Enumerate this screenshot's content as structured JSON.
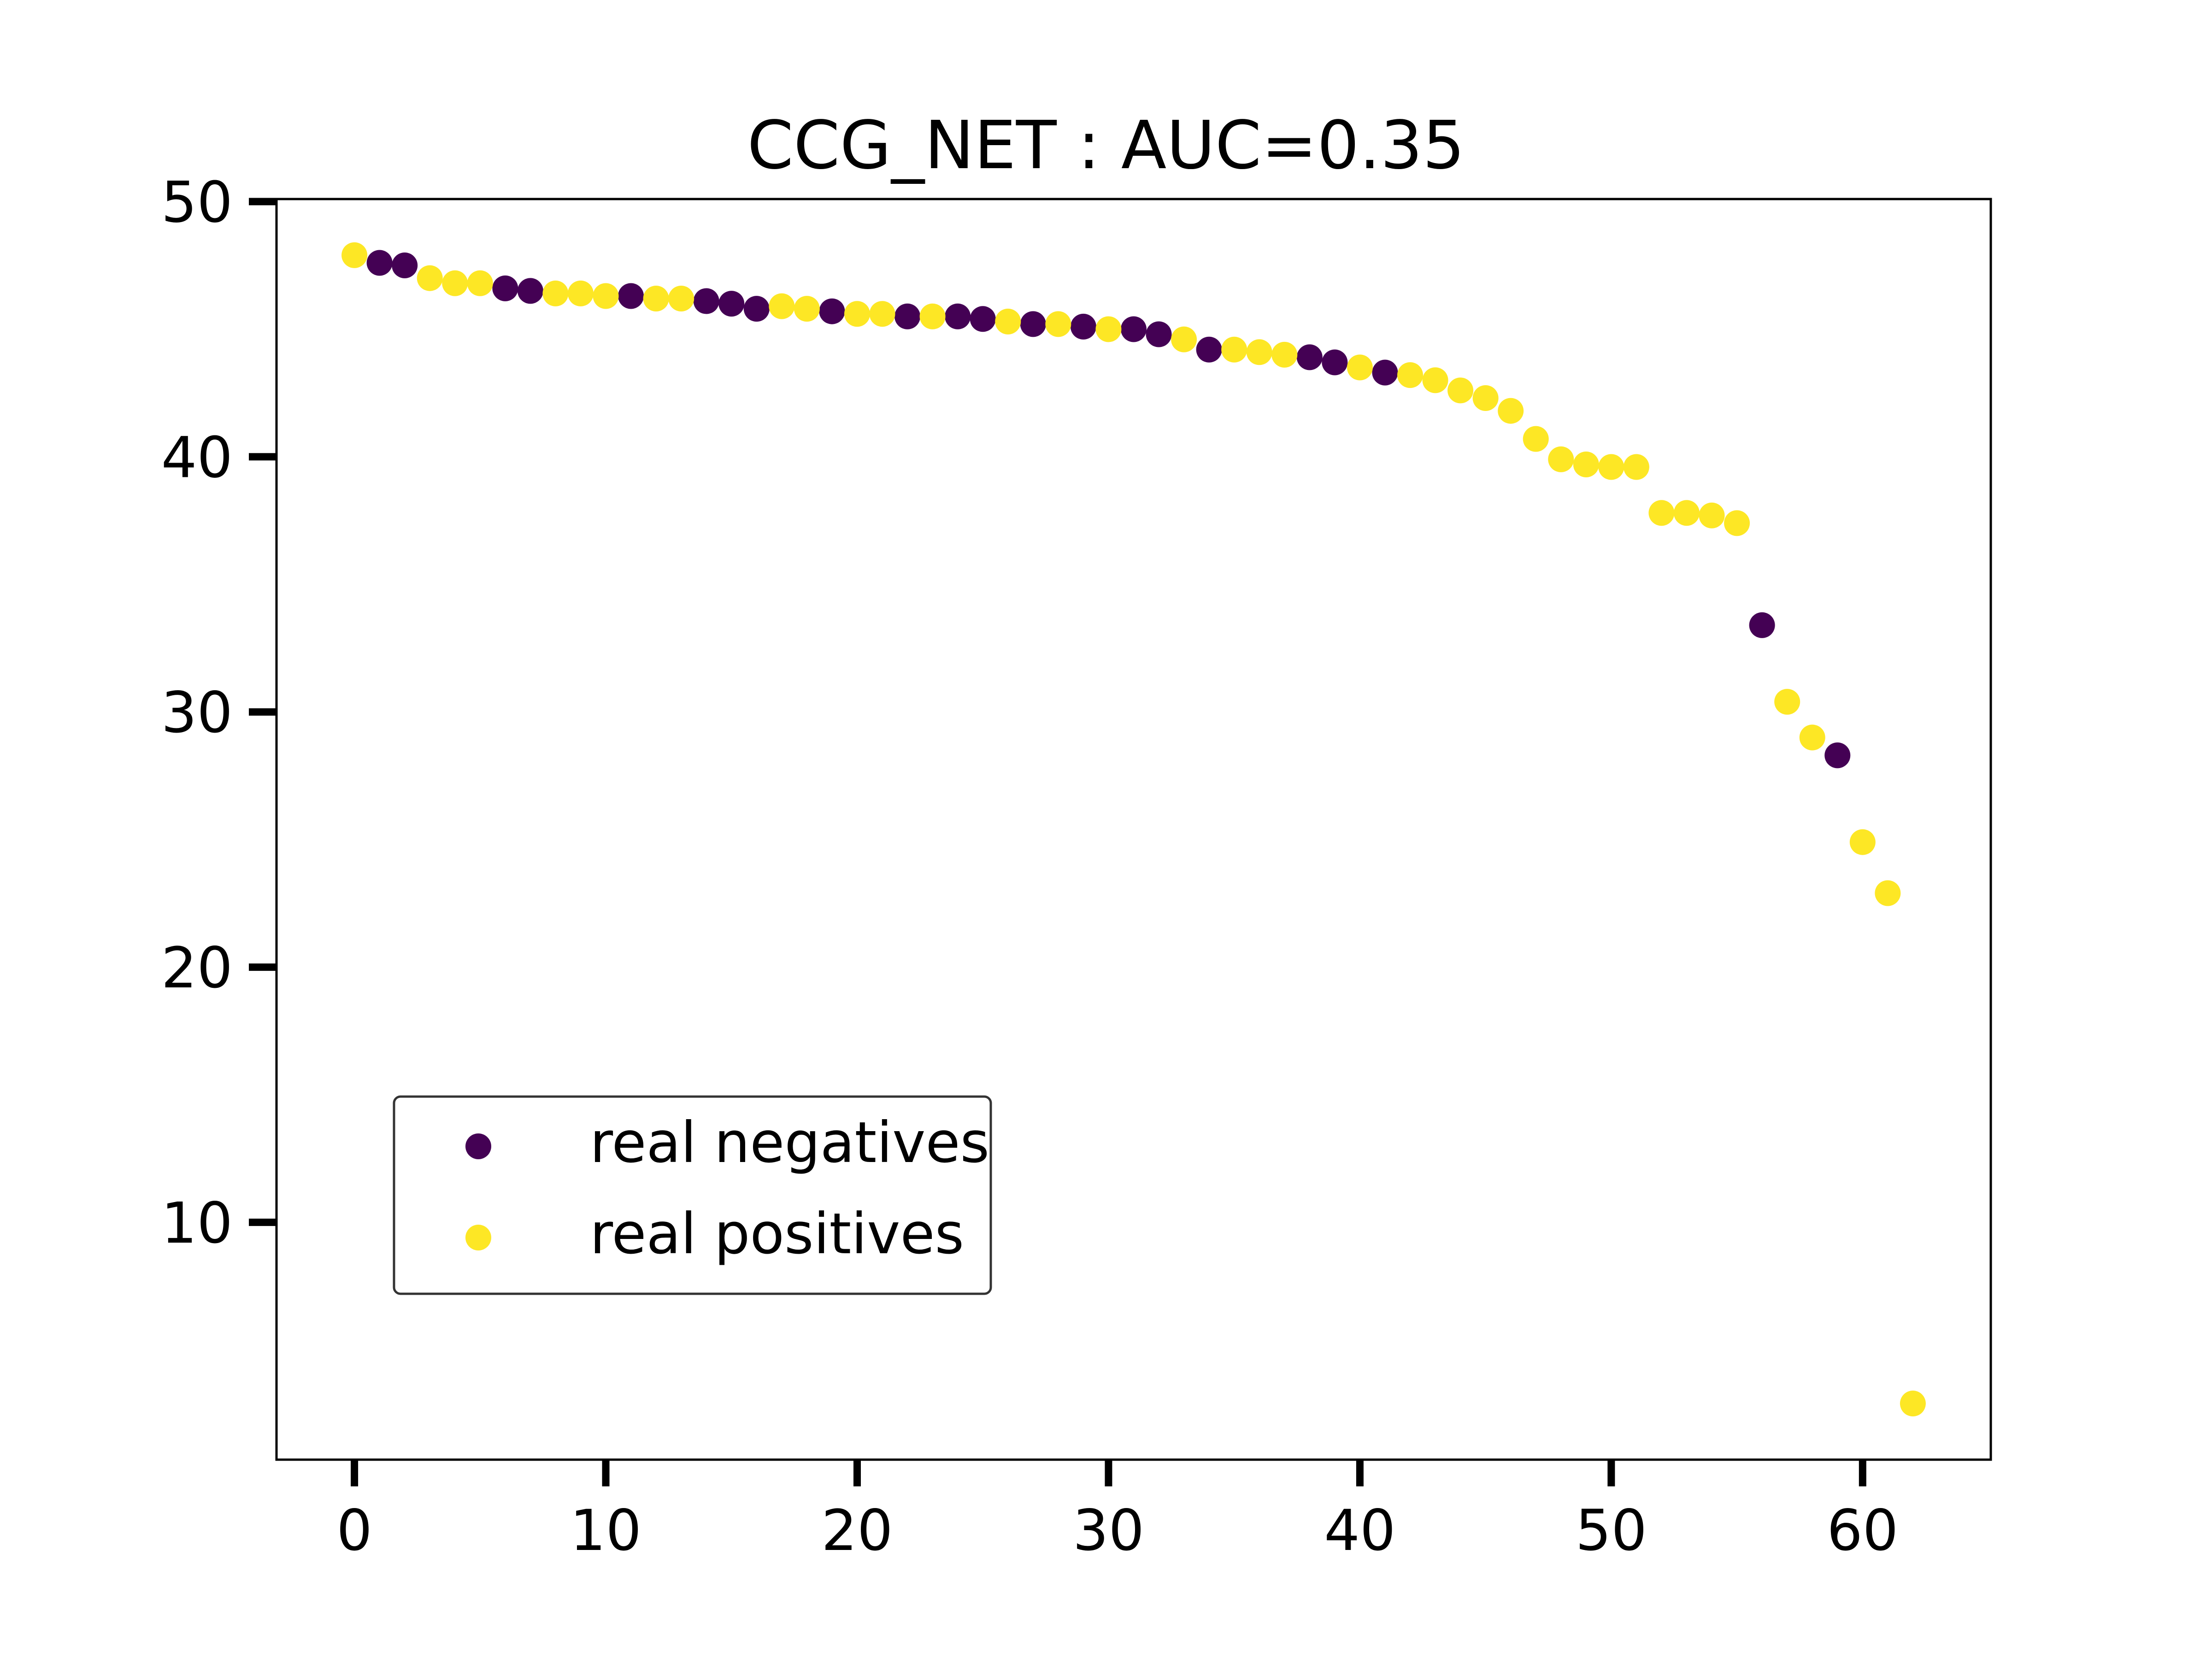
{
  "chart_data": {
    "type": "scatter",
    "title": "CCG_NET : AUC=0.35",
    "xlabel": "",
    "ylabel": "",
    "xlim": [
      -3.1,
      65.1
    ],
    "ylim": [
      0.7,
      50.1
    ],
    "xticks": [
      0,
      10,
      20,
      30,
      40,
      50,
      60
    ],
    "yticks": [
      10,
      20,
      30,
      40,
      50
    ],
    "grid": false,
    "legend_position": "lower-left",
    "colors": {
      "negative": "#440154",
      "positive": "#fde725",
      "axes": "#000000",
      "legend_border": "#333333"
    },
    "series": [
      {
        "name": "real negatives",
        "color": "#440154",
        "x": [
          1,
          2,
          6,
          7,
          11,
          14,
          15,
          16,
          19,
          22,
          24,
          25,
          27,
          29,
          31,
          32,
          34,
          38,
          39,
          41,
          56,
          59
        ],
        "y": [
          47.6,
          47.5,
          46.6,
          46.5,
          46.3,
          46.1,
          46.0,
          45.8,
          45.7,
          45.5,
          45.5,
          45.4,
          45.2,
          45.1,
          45.0,
          44.8,
          44.2,
          43.9,
          43.7,
          43.3,
          33.4,
          28.3
        ]
      },
      {
        "name": "real positives",
        "color": "#fde725",
        "x": [
          0,
          3,
          4,
          5,
          8,
          9,
          10,
          12,
          13,
          17,
          18,
          20,
          21,
          23,
          26,
          28,
          30,
          33,
          35,
          36,
          37,
          40,
          42,
          43,
          44,
          45,
          46,
          47,
          48,
          49,
          50,
          51,
          52,
          53,
          54,
          55,
          57,
          58,
          60,
          61,
          62
        ],
        "y": [
          47.9,
          47.0,
          46.8,
          46.8,
          46.4,
          46.4,
          46.3,
          46.2,
          46.2,
          45.9,
          45.8,
          45.6,
          45.6,
          45.5,
          45.3,
          45.2,
          45.0,
          44.6,
          44.2,
          44.1,
          44.0,
          43.5,
          43.2,
          43.0,
          42.6,
          42.3,
          41.8,
          40.7,
          39.9,
          39.7,
          39.6,
          39.6,
          37.8,
          37.8,
          37.7,
          37.4,
          30.4,
          29.0,
          24.9,
          22.9,
          2.9
        ]
      }
    ]
  }
}
